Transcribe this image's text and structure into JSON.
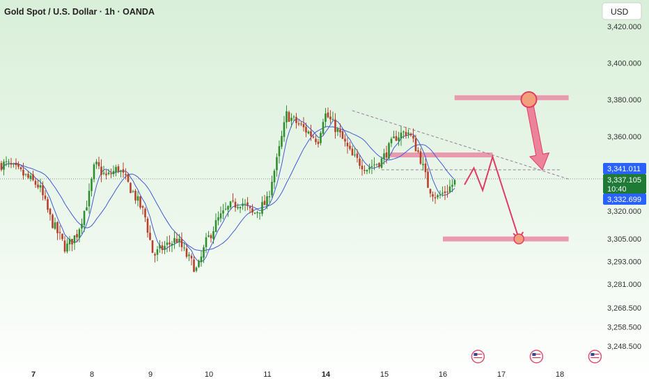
{
  "header": {
    "title": "Gold Spot / U.S. Dollar · 1h · OANDA",
    "currency_button": "USD"
  },
  "colors": {
    "bg_top": "#d9efd9",
    "bg_bottom": "#ffffff",
    "up": "#2f8f2f",
    "down": "#b8402a",
    "ma": "#3f5bd6",
    "zone": "#e98aa5",
    "arrow": "#e23b63",
    "arrow_fill": "#ec6f8d",
    "dot": "#f2a07a",
    "price_blue": "#2962ff",
    "price_green": "#1e7a34"
  },
  "price_labels": {
    "upper": "3,341.011",
    "current": "3,337.105",
    "countdown": "10:40",
    "lower": "3,332.699"
  },
  "chart_data": {
    "type": "candlestick",
    "title": "Gold Spot / U.S. Dollar · 1h · OANDA",
    "y_axis": {
      "side": "right",
      "scale": "log",
      "ticks": [
        "3,420.000",
        "3,400.000",
        "3,380.000",
        "3,360.000",
        "3,320.000",
        "3,305.000",
        "3,293.000",
        "3,281.000",
        "3,268.500",
        "3,258.500",
        "3,248.500"
      ]
    },
    "x_axis": {
      "ticks": [
        "7",
        "8",
        "9",
        "10",
        "11",
        "14",
        "15",
        "16",
        "17",
        "18"
      ],
      "bold": [
        "7",
        "14"
      ]
    },
    "series_waypoints": [
      {
        "day": 6.55,
        "price": 3345
      },
      {
        "day": 6.8,
        "price": 3340
      },
      {
        "day": 7.1,
        "price": 3333
      },
      {
        "day": 7.3,
        "price": 3315
      },
      {
        "day": 7.55,
        "price": 3300
      },
      {
        "day": 7.75,
        "price": 3308
      },
      {
        "day": 7.95,
        "price": 3328
      },
      {
        "day": 8.05,
        "price": 3345
      },
      {
        "day": 8.25,
        "price": 3338
      },
      {
        "day": 8.45,
        "price": 3343
      },
      {
        "day": 8.7,
        "price": 3330
      },
      {
        "day": 8.9,
        "price": 3318
      },
      {
        "day": 9.05,
        "price": 3296
      },
      {
        "day": 9.2,
        "price": 3300
      },
      {
        "day": 9.45,
        "price": 3305
      },
      {
        "day": 9.6,
        "price": 3297
      },
      {
        "day": 9.8,
        "price": 3288
      },
      {
        "day": 9.95,
        "price": 3303
      },
      {
        "day": 10.15,
        "price": 3315
      },
      {
        "day": 10.35,
        "price": 3322
      },
      {
        "day": 10.55,
        "price": 3325
      },
      {
        "day": 10.75,
        "price": 3318
      },
      {
        "day": 11.0,
        "price": 3325
      },
      {
        "day": 11.25,
        "price": 3338
      },
      {
        "day": 11.45,
        "price": 3345
      },
      {
        "day": 11.65,
        "price": 3355
      },
      {
        "day": 11.85,
        "price": 3365
      },
      {
        "day": 11.95,
        "price": 3372
      },
      {
        "day": 13.6,
        "price": 3358
      },
      {
        "day": 13.85,
        "price": 3370
      },
      {
        "day": 14.0,
        "price": 3372
      },
      {
        "day": 14.2,
        "price": 3363
      },
      {
        "day": 14.45,
        "price": 3349
      },
      {
        "day": 14.7,
        "price": 3343
      },
      {
        "day": 14.95,
        "price": 3347
      },
      {
        "day": 15.2,
        "price": 3360
      },
      {
        "day": 15.4,
        "price": 3363
      },
      {
        "day": 15.6,
        "price": 3350
      },
      {
        "day": 15.75,
        "price": 3333
      },
      {
        "day": 15.9,
        "price": 3327
      },
      {
        "day": 16.1,
        "price": 3332
      },
      {
        "day": 16.25,
        "price": 3337
      }
    ],
    "moving_averages": 2,
    "reference_price": 3337.105,
    "zones": [
      {
        "from_day": 16.2,
        "to_day": 18.15,
        "price": 3381
      },
      {
        "from_day": 15.1,
        "to_day": 16.85,
        "price": 3350
      },
      {
        "from_day": 16.0,
        "to_day": 18.15,
        "price": 3305
      }
    ],
    "trendline": {
      "from": {
        "day": 14.45,
        "price": 3374
      },
      "to": {
        "day": 18.15,
        "price": 3337
      }
    },
    "dashed_levels": [
      {
        "from_day": 14.95,
        "to_day": 18.0,
        "price": 3342
      }
    ],
    "projection_path": [
      {
        "day": 16.37,
        "price": 3334
      },
      {
        "day": 16.53,
        "price": 3343
      },
      {
        "day": 16.68,
        "price": 3331
      },
      {
        "day": 16.85,
        "price": 3349
      },
      {
        "day": 17.3,
        "price": 3305
      }
    ],
    "big_arrow": {
      "from": {
        "day": 17.47,
        "price": 3380
      },
      "to": {
        "day": 17.7,
        "price": 3342
      }
    },
    "event_icon_days": [
      16.6,
      17.6,
      18.6
    ]
  }
}
